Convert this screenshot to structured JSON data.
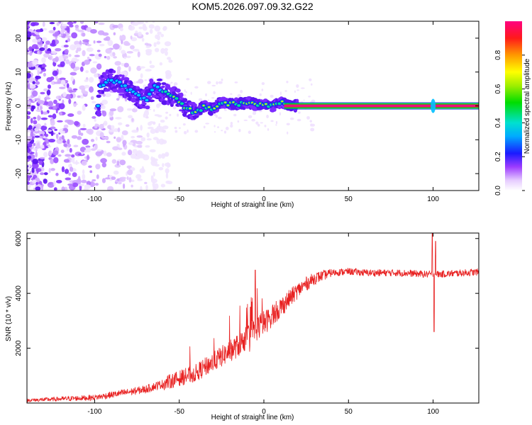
{
  "title": "KOM5.2026.097.09.32.G22",
  "colors": {
    "snr_line": "#e82020",
    "trace_green": "#00cc33",
    "trace_red": "#ff1744",
    "trace_magenta": "#d000d0"
  },
  "chart_data": [
    {
      "type": "heatmap",
      "name": "spectrogram",
      "xlabel": "Height of straight line (km)",
      "ylabel": "Frequency (Hz)",
      "xlim": [
        -140,
        127
      ],
      "ylim": [
        -25,
        25
      ],
      "xticks": [
        -100,
        -50,
        0,
        50,
        100
      ],
      "xtick_labels": [
        "-100",
        "-50",
        "0",
        "50",
        "100"
      ],
      "yticks": [
        -20,
        -10,
        0,
        10,
        20
      ],
      "ytick_labels": [
        "-20",
        "-10",
        "0",
        "10",
        "20"
      ],
      "colorbar": {
        "label": "Normalized spectral amplitude",
        "range": [
          0,
          1
        ],
        "ticks": [
          0,
          0.2,
          0.4,
          0.6,
          0.8
        ],
        "tick_labels": [
          "0.0",
          "0.2",
          "0.4",
          "0.6",
          "0.8"
        ]
      },
      "signal_ridge": {
        "x": [
          -97,
          -90,
          -85,
          -80,
          -75,
          -70,
          -65,
          -60,
          -55,
          -50,
          -45,
          -40,
          -35,
          -30,
          -25,
          -20,
          -15,
          -10,
          -5,
          0,
          5,
          10,
          15,
          20,
          30,
          50,
          100,
          127
        ],
        "y": [
          6,
          8,
          6.5,
          5,
          3,
          1.5,
          6,
          4,
          3,
          1.5,
          -1,
          -2,
          0,
          -1,
          1,
          0.5,
          0.5,
          1,
          0.5,
          0.5,
          0,
          1,
          0.5,
          0,
          0,
          0,
          0,
          0
        ]
      },
      "steady_line_start_x": 20,
      "spike_x": 100
    },
    {
      "type": "line",
      "name": "snr",
      "xlabel": "Height of straight line (km)",
      "ylabel": "SNR (10 * v/v)",
      "xlim": [
        -140,
        127
      ],
      "ylim": [
        0,
        6200
      ],
      "xticks": [
        -100,
        -50,
        0,
        50,
        100
      ],
      "xtick_labels": [
        "-100",
        "-50",
        "0",
        "50",
        "100"
      ],
      "yticks": [
        2000,
        4000,
        6000
      ],
      "ytick_labels": [
        "2000",
        "4000",
        "6000"
      ],
      "trend": {
        "x": [
          -140,
          -120,
          -100,
          -90,
          -80,
          -70,
          -60,
          -50,
          -45,
          -40,
          -35,
          -30,
          -25,
          -20,
          -15,
          -10,
          -5,
          0,
          5,
          10,
          15,
          20,
          25,
          30,
          35,
          40,
          50,
          60,
          80,
          95,
          105,
          127
        ],
        "y": [
          100,
          150,
          200,
          300,
          400,
          500,
          700,
          900,
          1000,
          1100,
          1300,
          1500,
          1700,
          1900,
          2100,
          2400,
          2700,
          2900,
          3200,
          3500,
          3800,
          4100,
          4350,
          4550,
          4650,
          4750,
          4800,
          4750,
          4750,
          4700,
          4700,
          4780
        ]
      },
      "spikes": [
        {
          "x": -5,
          "y": 4850
        },
        {
          "x": -8,
          "y": 3500
        },
        {
          "x": 99.5,
          "y": 6200
        },
        {
          "x": 100.5,
          "y": 2600
        },
        {
          "x": 101.5,
          "y": 5900
        }
      ]
    }
  ]
}
